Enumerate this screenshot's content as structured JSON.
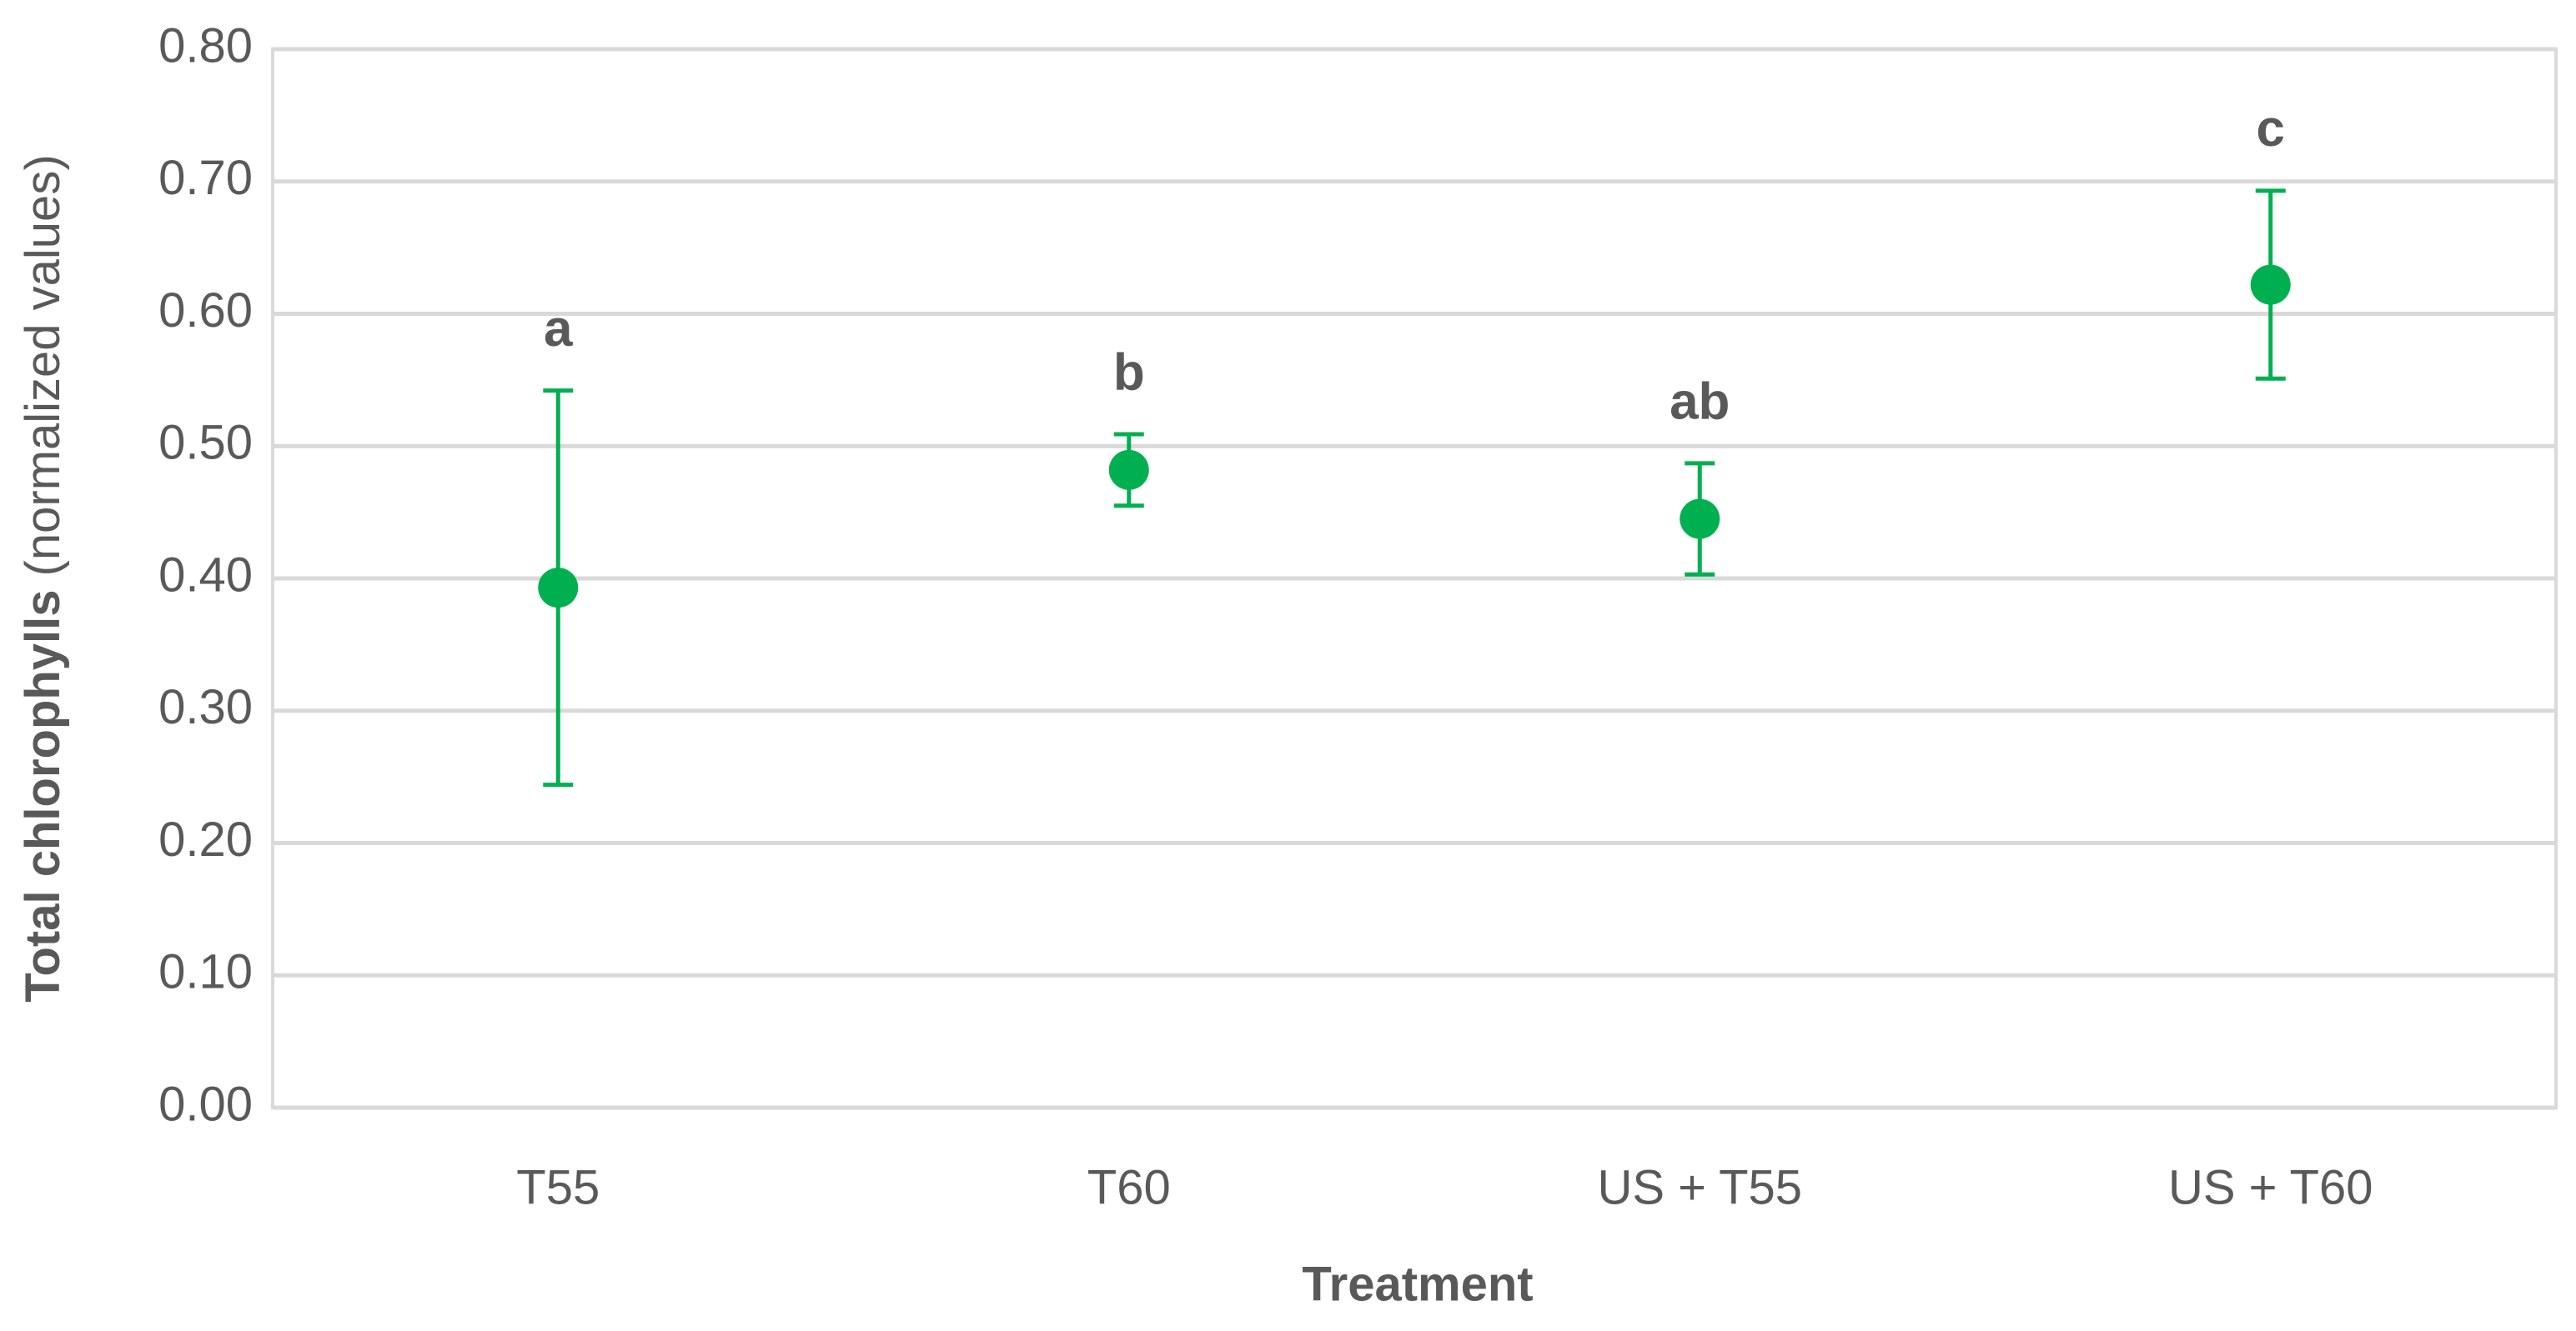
{
  "chart_data": {
    "type": "errorbar",
    "ylabel": {
      "bold": "Total chlorophylls",
      "normal": "(normalized values)"
    },
    "xlabel": "Treatment",
    "categories": [
      "T55",
      "T60",
      "US + T55",
      "US + T60"
    ],
    "values": [
      0.393,
      0.482,
      0.445,
      0.622
    ],
    "errors": [
      0.149,
      0.027,
      0.042,
      0.071
    ],
    "annotations": [
      "a",
      "b",
      "ab",
      "c"
    ],
    "color": "#00b050",
    "ylim": [
      0,
      0.8
    ],
    "yticks": [
      {
        "value": 0,
        "label": "0.00"
      },
      {
        "value": 0.1,
        "label": "0.10"
      },
      {
        "value": 0.2,
        "label": "0.20"
      },
      {
        "value": 0.3,
        "label": "0.30"
      },
      {
        "value": 0.4,
        "label": "0.40"
      },
      {
        "value": 0.5,
        "label": "0.50"
      },
      {
        "value": 0.6,
        "label": "0.60"
      },
      {
        "value": 0.7,
        "label": "0.70"
      },
      {
        "value": 0.8,
        "label": "0.80"
      }
    ],
    "grid": true
  }
}
